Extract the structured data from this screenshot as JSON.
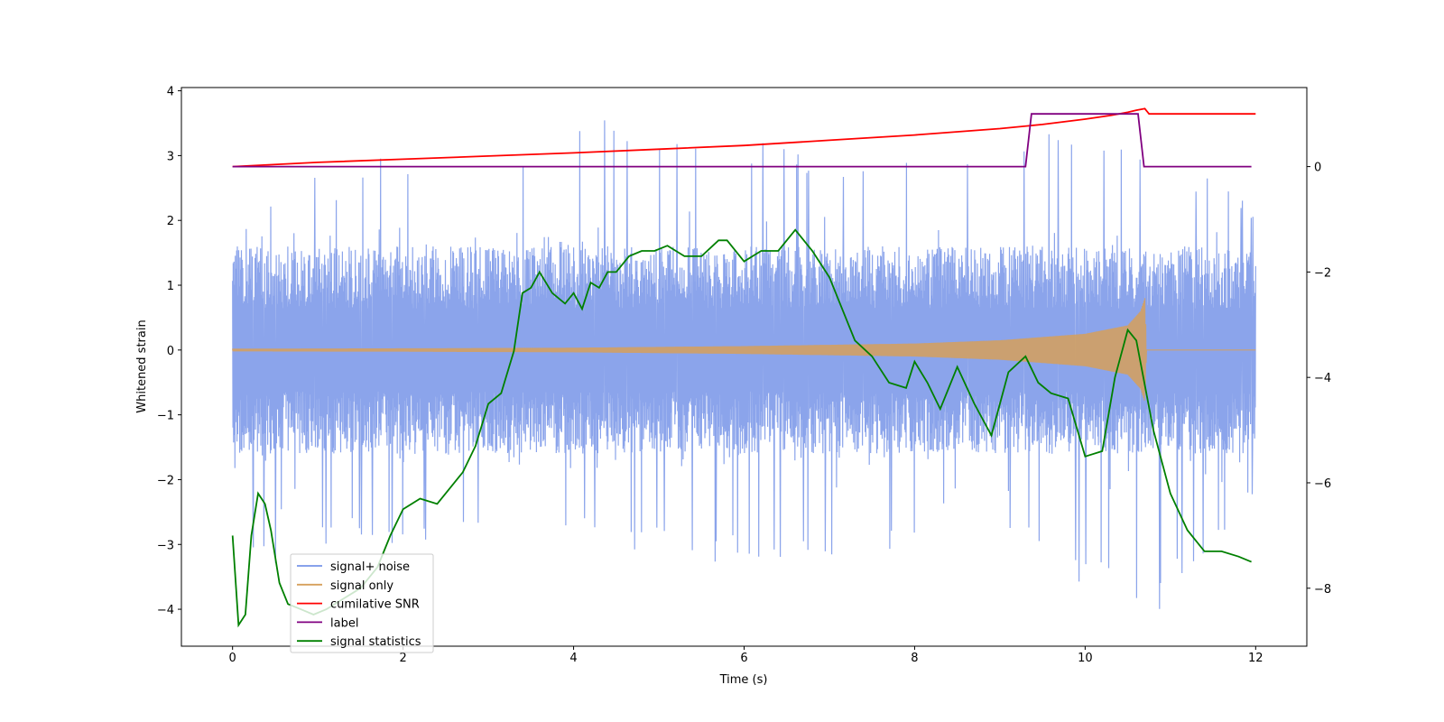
{
  "chart_data": {
    "type": "line",
    "title": "",
    "xlabel": "Time (s)",
    "ylabel": "Whitened strain",
    "ylabel_right": "",
    "xlim": [
      -0.6,
      12.6
    ],
    "ylim": [
      -4.57,
      4.05
    ],
    "ylim_right": [
      -9.1,
      1.5
    ],
    "xticks": [
      0,
      2,
      4,
      6,
      8,
      10,
      12
    ],
    "xtick_labels": [
      "0",
      "2",
      "4",
      "6",
      "8",
      "10",
      "12"
    ],
    "yticks": [
      -4,
      -3,
      -2,
      -1,
      0,
      1,
      2,
      3,
      4
    ],
    "ytick_labels": [
      "−4",
      "−3",
      "−2",
      "−1",
      "0",
      "1",
      "2",
      "3",
      "4"
    ],
    "yticks_right": [
      -8,
      -6,
      -4,
      -2,
      0
    ],
    "ytick_right_labels": [
      "−8",
      "−6",
      "−4",
      "−2",
      "0"
    ],
    "legend_position": "lower-left",
    "series": [
      {
        "name": "signal+ noise",
        "axis": "left",
        "color": "#7794e8",
        "description": "noisy whitened strain, approx. uniform band between -2.3 and 1.9 with spikes",
        "envelope_upper": [
          [
            0,
            1.9
          ],
          [
            0.1,
            2.9
          ],
          [
            0.7,
            3.1
          ],
          [
            1.8,
            3.0
          ],
          [
            3.4,
            3.05
          ],
          [
            4.1,
            3.65
          ],
          [
            7.9,
            2.9
          ],
          [
            9.5,
            3.35
          ],
          [
            10.0,
            3.55
          ],
          [
            10.5,
            3.3
          ],
          [
            12,
            2.3
          ]
        ],
        "envelope_lower": [
          [
            0,
            -1.9
          ],
          [
            0.3,
            -3.4
          ],
          [
            1.3,
            -3.0
          ],
          [
            3.5,
            -3.0
          ],
          [
            4.8,
            -3.1
          ],
          [
            5.6,
            -3.3
          ],
          [
            6.3,
            -3.3
          ],
          [
            7.97,
            -3.2
          ],
          [
            9.0,
            -3.0
          ],
          [
            10.8,
            -4.15
          ],
          [
            12,
            -2.3
          ]
        ],
        "band": [
          -1.6,
          1.6
        ]
      },
      {
        "name": "signal only",
        "axis": "left",
        "color": "#d6a05b",
        "description": "chirp signal with growing amplitude, ends at merger",
        "amplitude": [
          [
            0,
            0.02
          ],
          [
            2,
            0.025
          ],
          [
            4,
            0.035
          ],
          [
            6,
            0.06
          ],
          [
            8,
            0.1
          ],
          [
            9,
            0.15
          ],
          [
            10,
            0.25
          ],
          [
            10.5,
            0.38
          ],
          [
            10.65,
            0.6
          ],
          [
            10.7,
            0.8
          ],
          [
            10.72,
            0.0
          ],
          [
            12,
            0.0
          ]
        ]
      },
      {
        "name": "cumilative SNR",
        "axis": "right",
        "color": "#ff0000",
        "x": [
          0,
          1,
          2,
          3,
          4,
          5,
          6,
          7,
          8,
          9,
          9.5,
          10,
          10.3,
          10.5,
          10.6,
          10.7,
          10.75,
          12
        ],
        "y": [
          0,
          0.08,
          0.14,
          0.2,
          0.26,
          0.33,
          0.4,
          0.5,
          0.6,
          0.72,
          0.8,
          0.9,
          0.97,
          1.03,
          1.07,
          1.1,
          1.0,
          1.0
        ]
      },
      {
        "name": "label",
        "axis": "right",
        "color": "#800080",
        "x": [
          0,
          9.3,
          9.37,
          10.62,
          10.69,
          11.95
        ],
        "y": [
          0,
          0,
          1,
          1,
          0,
          0
        ]
      },
      {
        "name": "signal statistics",
        "axis": "right",
        "color": "#008000",
        "x": [
          0,
          0.07,
          0.15,
          0.22,
          0.3,
          0.38,
          0.45,
          0.55,
          0.65,
          0.8,
          0.95,
          1.1,
          1.3,
          1.5,
          1.7,
          1.85,
          2.0,
          2.2,
          2.4,
          2.55,
          2.7,
          2.85,
          3.0,
          3.15,
          3.3,
          3.4,
          3.5,
          3.6,
          3.75,
          3.9,
          4.0,
          4.1,
          4.2,
          4.3,
          4.4,
          4.5,
          4.65,
          4.8,
          4.95,
          5.1,
          5.3,
          5.5,
          5.7,
          5.8,
          6.0,
          6.2,
          6.4,
          6.6,
          6.7,
          6.8,
          7.0,
          7.1,
          7.3,
          7.5,
          7.7,
          7.9,
          8.0,
          8.15,
          8.3,
          8.5,
          8.7,
          8.9,
          9.1,
          9.3,
          9.45,
          9.6,
          9.8,
          10.0,
          10.2,
          10.35,
          10.5,
          10.6,
          10.8,
          11.0,
          11.2,
          11.4,
          11.6,
          11.8,
          11.95
        ],
        "y": [
          -7.0,
          -8.7,
          -8.5,
          -7.0,
          -6.2,
          -6.4,
          -6.9,
          -7.9,
          -8.3,
          -8.4,
          -8.5,
          -8.4,
          -8.2,
          -8.0,
          -7.6,
          -7.0,
          -6.5,
          -6.3,
          -6.4,
          -6.1,
          -5.8,
          -5.3,
          -4.5,
          -4.3,
          -3.5,
          -2.4,
          -2.3,
          -2.0,
          -2.4,
          -2.6,
          -2.4,
          -2.7,
          -2.2,
          -2.3,
          -2.0,
          -2.0,
          -1.7,
          -1.6,
          -1.6,
          -1.5,
          -1.7,
          -1.7,
          -1.4,
          -1.4,
          -1.8,
          -1.6,
          -1.6,
          -1.2,
          -1.4,
          -1.6,
          -2.1,
          -2.5,
          -3.3,
          -3.6,
          -4.1,
          -4.2,
          -3.7,
          -4.1,
          -4.6,
          -3.8,
          -4.5,
          -5.1,
          -3.9,
          -3.6,
          -4.1,
          -4.3,
          -4.4,
          -5.5,
          -5.4,
          -4.0,
          -3.1,
          -3.3,
          -5.0,
          -6.2,
          -6.9,
          -7.3,
          -7.3,
          -7.4,
          -7.5
        ]
      }
    ]
  }
}
